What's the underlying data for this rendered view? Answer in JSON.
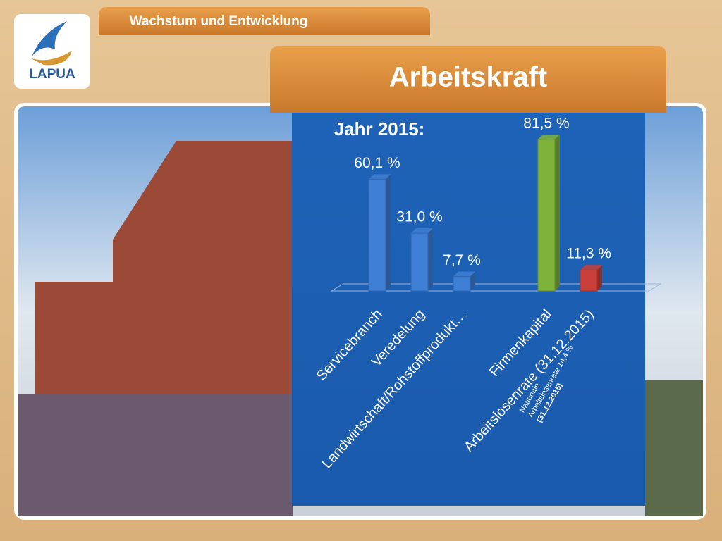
{
  "header": {
    "section": "Wachstum und Entwicklung",
    "title": "Arbeitskraft",
    "logo": "LAPUA"
  },
  "chart_data": {
    "type": "bar",
    "title": "Jahr 2015:",
    "categories": [
      "Servicebranch",
      "Veredelung",
      "Landwirtschaft/Rohstoffprodukt…",
      "Firmenkapital",
      "Arbeitslosenrate (31.12.2015)"
    ],
    "values": [
      60.1,
      31.0,
      7.7,
      81.5,
      11.3
    ],
    "value_labels": [
      "60,1 %",
      "31,0 %",
      "7,7 %",
      "81,5 %",
      "11,3 %"
    ],
    "colors": [
      "#3f7fd6",
      "#3f7fd6",
      "#3f7fd6",
      "#7fb23a",
      "#c9403a"
    ],
    "annotation": [
      "Nationale",
      "Arbeitslosenrate 14,4 %",
      "(31.12.2015)"
    ]
  }
}
